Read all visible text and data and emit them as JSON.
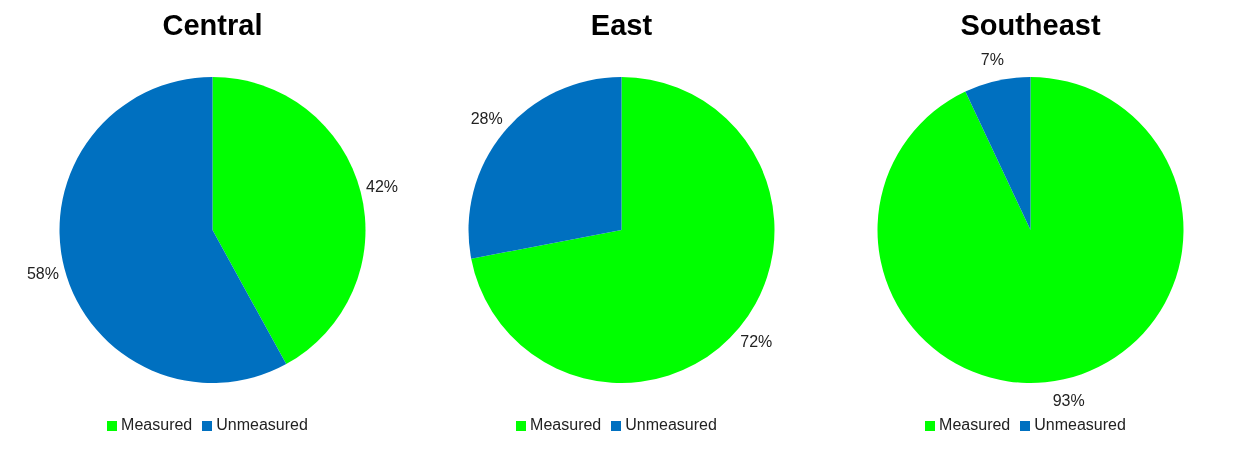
{
  "chart_data": [
    {
      "type": "pie",
      "title": "Central",
      "categories": [
        "Measured",
        "Unmeasured"
      ],
      "values": [
        42,
        58
      ],
      "colors": [
        "#00ff00",
        "#0070c0"
      ],
      "value_labels": [
        "42%",
        "58%"
      ],
      "legend": "bottom"
    },
    {
      "type": "pie",
      "title": "East",
      "categories": [
        "Measured",
        "Unmeasured"
      ],
      "values": [
        72,
        28
      ],
      "colors": [
        "#00ff00",
        "#0070c0"
      ],
      "value_labels": [
        "72%",
        "28%"
      ],
      "legend": "bottom"
    },
    {
      "type": "pie",
      "title": "Southeast",
      "categories": [
        "Measured",
        "Unmeasured"
      ],
      "values": [
        93,
        7
      ],
      "colors": [
        "#00ff00",
        "#0070c0"
      ],
      "value_labels": [
        "93%",
        "7%"
      ],
      "legend": "bottom"
    }
  ]
}
